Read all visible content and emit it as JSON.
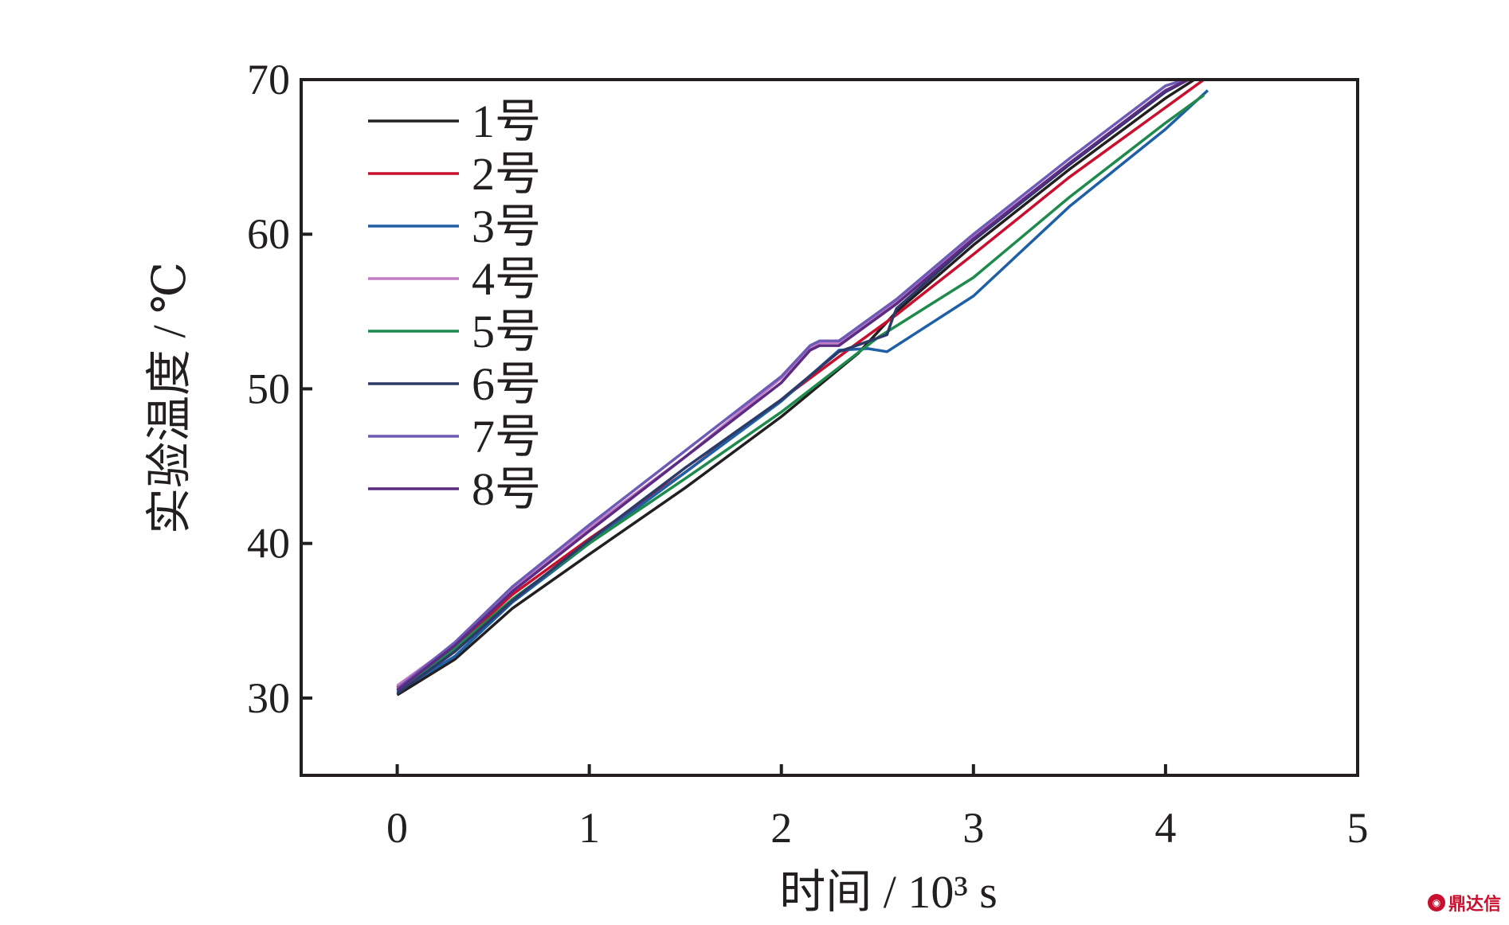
{
  "chart_data": {
    "type": "line",
    "title": "",
    "xlabel": "时间 / 10³ s",
    "ylabel": "实验温度 / ℃",
    "xlim": [
      -0.5,
      5
    ],
    "ylim": [
      25,
      70
    ],
    "xticks": [
      0,
      1,
      2,
      3,
      4,
      5
    ],
    "yticks": [
      30,
      40,
      50,
      60,
      70
    ],
    "grid": false,
    "legend_position": "top-left",
    "series": [
      {
        "name": "1号",
        "color": "#231f20",
        "x": [
          0,
          0.3,
          0.6,
          1.0,
          1.5,
          2.0,
          2.4,
          2.6,
          3.0,
          3.5,
          4.0,
          4.15
        ],
        "y": [
          30.2,
          32.5,
          35.8,
          39.3,
          43.6,
          48.2,
          52.3,
          55.0,
          59.3,
          64.2,
          68.8,
          70
        ]
      },
      {
        "name": "2号",
        "color": "#c8102e",
        "x": [
          0,
          0.3,
          0.6,
          1.0,
          1.5,
          2.0,
          2.4,
          2.6,
          3.0,
          3.5,
          4.0,
          4.2
        ],
        "y": [
          30.7,
          33.3,
          36.7,
          40.3,
          44.6,
          49.3,
          53.0,
          54.8,
          58.7,
          63.7,
          68.2,
          70
        ]
      },
      {
        "name": "3号",
        "color": "#1f5fa6",
        "x": [
          0,
          0.3,
          0.6,
          1.0,
          1.5,
          2.0,
          2.3,
          2.45,
          2.55,
          3.0,
          3.5,
          4.0,
          4.22
        ],
        "y": [
          30.4,
          32.7,
          36.2,
          40.0,
          44.6,
          49.2,
          52.5,
          52.6,
          52.4,
          56.0,
          61.8,
          66.8,
          69.3
        ]
      },
      {
        "name": "4号",
        "color": "#c27bc4",
        "x": [
          0,
          0.3,
          0.6,
          1.0,
          1.5,
          2.0,
          2.15,
          2.2,
          2.3,
          2.6,
          3.0,
          3.5,
          4.0,
          4.12
        ],
        "y": [
          30.8,
          33.5,
          37.0,
          41.0,
          45.6,
          50.7,
          52.6,
          53.0,
          53.0,
          55.6,
          59.8,
          64.6,
          69.3,
          70
        ]
      },
      {
        "name": "5号",
        "color": "#1e8a4c",
        "x": [
          0,
          0.3,
          0.6,
          1.0,
          1.5,
          2.0,
          2.5,
          3.0,
          3.5,
          4.0,
          4.2
        ],
        "y": [
          30.5,
          33.2,
          36.4,
          40.0,
          44.2,
          48.5,
          53.3,
          57.2,
          62.4,
          67.2,
          69.0
        ]
      },
      {
        "name": "6号",
        "color": "#2b3a67",
        "x": [
          0,
          0.3,
          0.6,
          1.0,
          1.5,
          2.0,
          2.3,
          2.55,
          2.58,
          2.6,
          3.0,
          3.5,
          4.0,
          4.12
        ],
        "y": [
          30.3,
          33.0,
          36.3,
          40.2,
          44.9,
          49.3,
          52.4,
          53.5,
          54.6,
          55.2,
          59.6,
          64.5,
          69.2,
          70
        ]
      },
      {
        "name": "7号",
        "color": "#6d5bb6",
        "x": [
          0,
          0.3,
          0.6,
          1.0,
          1.5,
          2.0,
          2.15,
          2.2,
          2.3,
          2.6,
          3.0,
          3.5,
          4.0,
          4.1
        ],
        "y": [
          30.6,
          33.6,
          37.2,
          41.2,
          46.0,
          50.8,
          52.8,
          53.1,
          53.1,
          55.8,
          60.0,
          64.9,
          69.6,
          70
        ]
      },
      {
        "name": "8号",
        "color": "#5b2a82",
        "x": [
          0,
          0.3,
          0.6,
          1.0,
          1.5,
          2.0,
          2.15,
          2.2,
          2.3,
          2.6,
          3.0,
          3.5,
          4.0,
          4.12
        ],
        "y": [
          30.5,
          33.4,
          36.9,
          40.8,
          45.6,
          50.4,
          52.5,
          52.8,
          52.8,
          55.5,
          59.7,
          64.6,
          69.3,
          70
        ]
      }
    ]
  },
  "watermark": {
    "text": "鼎达信",
    "icon": "logo-icon"
  }
}
